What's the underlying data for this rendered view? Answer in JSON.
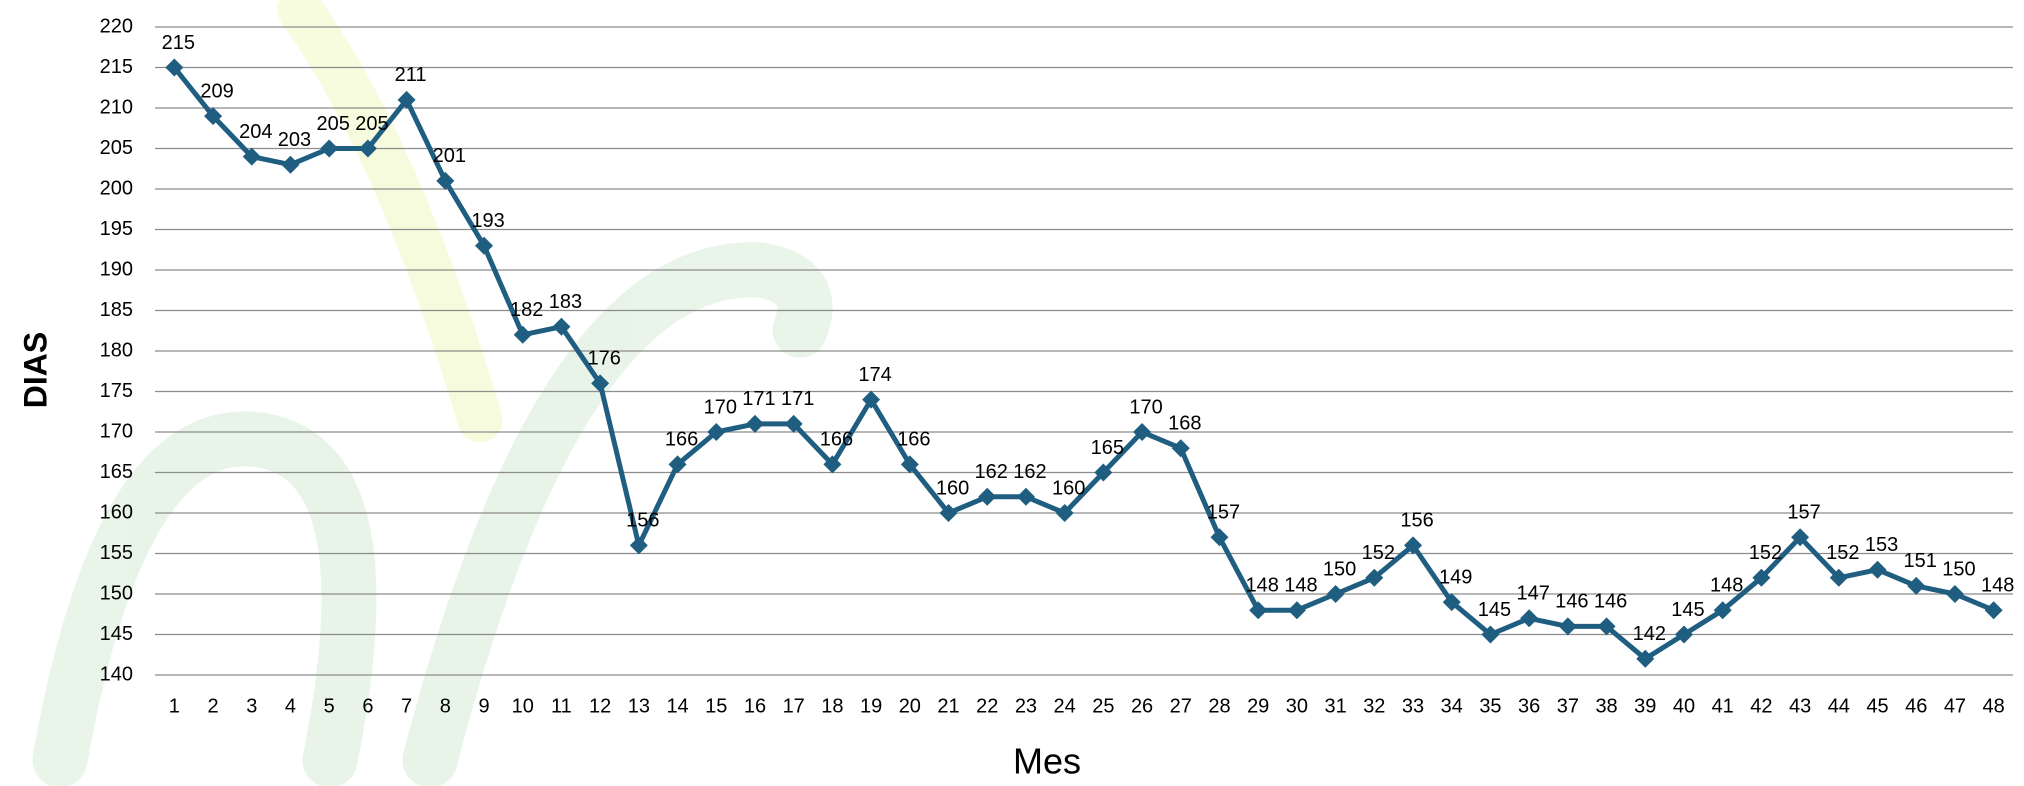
{
  "chart_data": {
    "type": "line",
    "x_label": "Mes",
    "y_label": "DIAS",
    "categories": [
      "1",
      "2",
      "3",
      "4",
      "5",
      "6",
      "7",
      "8",
      "9",
      "10",
      "11",
      "12",
      "13",
      "14",
      "15",
      "16",
      "17",
      "18",
      "19",
      "20",
      "21",
      "22",
      "23",
      "24",
      "25",
      "26",
      "27",
      "28",
      "29",
      "30",
      "31",
      "32",
      "33",
      "34",
      "35",
      "36",
      "37",
      "38",
      "39",
      "40",
      "41",
      "42",
      "43",
      "44",
      "45",
      "46",
      "47",
      "48"
    ],
    "series": [
      {
        "name": "DIAS",
        "color": "#1f5e80",
        "values": [
          215,
          209,
          204,
          203,
          205,
          205,
          211,
          201,
          193,
          182,
          183,
          176,
          156,
          166,
          170,
          171,
          171,
          166,
          174,
          166,
          160,
          162,
          162,
          160,
          165,
          170,
          168,
          157,
          148,
          148,
          150,
          152,
          156,
          149,
          145,
          147,
          146,
          146,
          142,
          145,
          148,
          152,
          157,
          152,
          153,
          151,
          150,
          148
        ]
      }
    ],
    "ylim": [
      140,
      220
    ],
    "yticks": [
      140,
      145,
      150,
      155,
      160,
      165,
      170,
      175,
      180,
      185,
      190,
      195,
      200,
      205,
      210,
      215,
      220
    ],
    "grid": true
  }
}
